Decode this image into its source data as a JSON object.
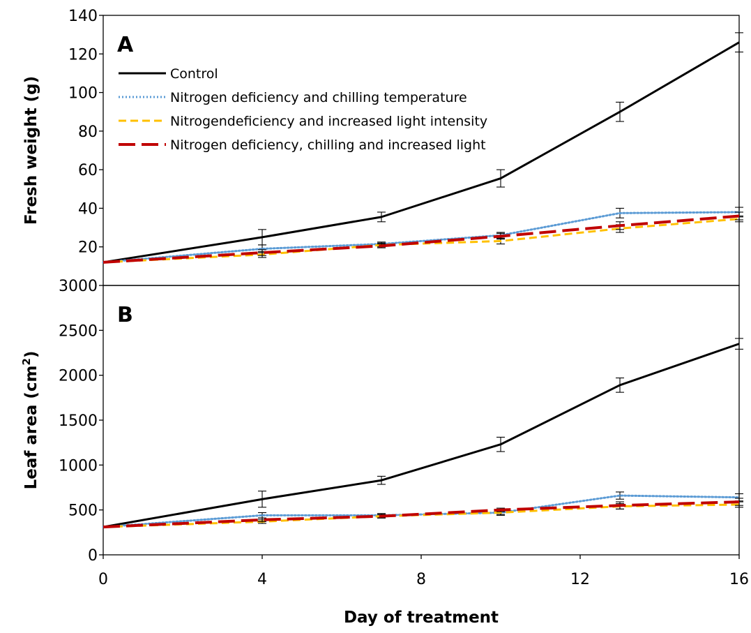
{
  "chart_data": [
    {
      "type": "line",
      "panel_label": "A",
      "ylabel": "Fresh weight (g)",
      "xlabel": "",
      "xlim": [
        0,
        16
      ],
      "ylim": [
        0,
        140
      ],
      "yticks": [
        20,
        40,
        60,
        80,
        100,
        120,
        140
      ],
      "grid": false,
      "legend_position": "top-left",
      "series": [
        {
          "name": "Control",
          "color": "#000000",
          "dash": "solid",
          "x": [
            0,
            4,
            7,
            10,
            13,
            16
          ],
          "y": [
            12,
            25,
            35.5,
            55.5,
            90,
            126
          ],
          "err": [
            0,
            4,
            2.5,
            4.5,
            5,
            5
          ]
        },
        {
          "name": "Nitrogen deficiency and chilling temperature",
          "color": "#5B9BD5",
          "dash": "dotted",
          "x": [
            0,
            4,
            7,
            10,
            13,
            16
          ],
          "y": [
            12,
            19,
            21.5,
            26,
            37.5,
            38
          ],
          "err": [
            0,
            2,
            1,
            1.5,
            2.5,
            2.5
          ]
        },
        {
          "name": "Nitrogendeficiency and increased light intensity",
          "color": "#FFC000",
          "dash": "dashed",
          "x": [
            0,
            4,
            7,
            10,
            13,
            16
          ],
          "y": [
            12,
            16,
            21,
            23,
            29.5,
            34.5
          ],
          "err": [
            0,
            1.5,
            1,
            1.5,
            2,
            1.5
          ]
        },
        {
          "name": "Nitrogen deficiency, chilling and increased light",
          "color": "#C00000",
          "dash": "long-dashed",
          "x": [
            0,
            4,
            7,
            10,
            13,
            16
          ],
          "y": [
            12,
            17,
            20.5,
            25.5,
            31,
            36
          ],
          "err": [
            0,
            1.5,
            1,
            1.5,
            2,
            2
          ]
        }
      ]
    },
    {
      "type": "line",
      "panel_label": "B",
      "ylabel": "Leaf area (cm",
      "ylabel_superscript": "2",
      "ylabel_suffix": ")",
      "xlabel": "Day of treatment",
      "xlim": [
        0,
        16
      ],
      "ylim": [
        0,
        3000
      ],
      "xticks": [
        0,
        4,
        8,
        12,
        16
      ],
      "yticks": [
        0,
        500,
        1000,
        1500,
        2000,
        2500,
        3000
      ],
      "grid": false,
      "series": [
        {
          "name": "Control",
          "color": "#000000",
          "dash": "solid",
          "x": [
            0,
            4,
            7,
            10,
            13,
            16
          ],
          "y": [
            310,
            620,
            830,
            1230,
            1890,
            2350
          ],
          "err": [
            0,
            90,
            45,
            80,
            80,
            60
          ]
        },
        {
          "name": "Nitrogen deficiency and chilling temperature",
          "color": "#5B9BD5",
          "dash": "dotted",
          "x": [
            0,
            4,
            7,
            10,
            13,
            16
          ],
          "y": [
            310,
            440,
            440,
            470,
            660,
            640
          ],
          "err": [
            0,
            30,
            20,
            30,
            40,
            40
          ]
        },
        {
          "name": "Nitrogendeficiency and increased light intensity",
          "color": "#FFC000",
          "dash": "dashed",
          "x": [
            0,
            4,
            7,
            10,
            13,
            16
          ],
          "y": [
            310,
            370,
            430,
            470,
            540,
            560
          ],
          "err": [
            0,
            20,
            20,
            20,
            30,
            30
          ]
        },
        {
          "name": "Nitrogen deficiency, chilling and increased light",
          "color": "#C00000",
          "dash": "long-dashed",
          "x": [
            0,
            4,
            7,
            10,
            13,
            16
          ],
          "y": [
            310,
            390,
            430,
            500,
            550,
            590
          ],
          "err": [
            0,
            20,
            20,
            20,
            40,
            40
          ]
        }
      ]
    }
  ]
}
